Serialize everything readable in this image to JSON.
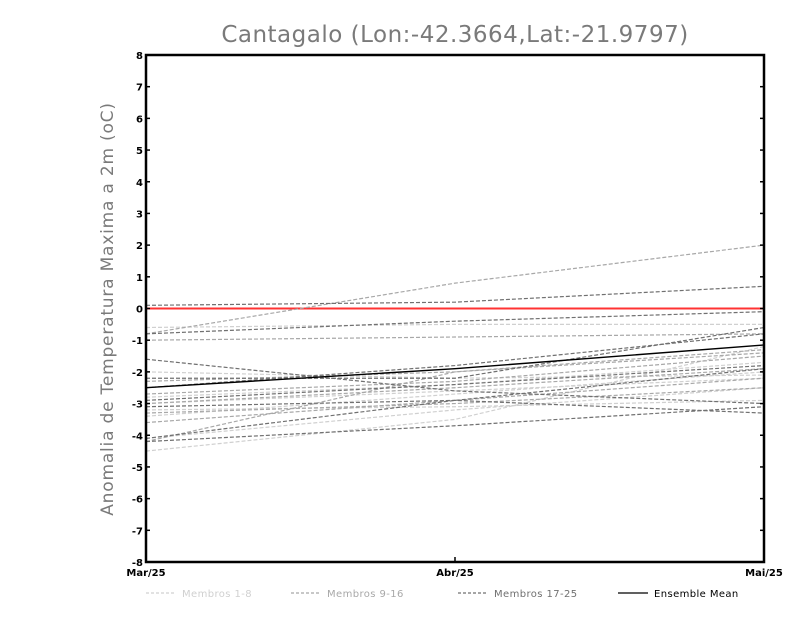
{
  "chart_data": {
    "type": "line",
    "title": "Cantagalo (Lon:-42.3664,Lat:-21.9797)",
    "xlabel": "",
    "ylabel": "Anomalia de Temperatura Maxima a 2m (oC)",
    "x_tick_labels": [
      "Mar/25",
      "Abr/25",
      "Mai/25"
    ],
    "y_ticks": [
      -8,
      -7,
      -6,
      -5,
      -4,
      -3,
      -2,
      -1,
      0,
      1,
      2,
      3,
      4,
      5,
      6,
      7,
      8
    ],
    "ylim": [
      -8,
      8
    ],
    "grid": false,
    "legend_position": "bottom",
    "reference_line": {
      "value": 0,
      "color": "#ff3333"
    },
    "legend": [
      {
        "label": "Membros 1-8",
        "color": "#d0d0d0",
        "dash": "dashed"
      },
      {
        "label": "Membros 9-16",
        "color": "#a8a8a8",
        "dash": "dashed"
      },
      {
        "label": "Membros 17-25",
        "color": "#707070",
        "dash": "dashed"
      },
      {
        "label": "Ensemble Mean",
        "color": "#000000",
        "dash": "solid"
      }
    ],
    "series": [
      {
        "group": 1,
        "values": [
          -0.6,
          -0.5,
          -0.5
        ]
      },
      {
        "group": 1,
        "values": [
          -2.0,
          -2.2,
          -2.1
        ]
      },
      {
        "group": 1,
        "values": [
          -2.8,
          -2.4,
          -1.7
        ]
      },
      {
        "group": 1,
        "values": [
          -3.0,
          -2.6,
          -2.2
        ]
      },
      {
        "group": 1,
        "values": [
          -3.4,
          -2.7,
          -2.0
        ]
      },
      {
        "group": 1,
        "values": [
          -4.1,
          -3.2,
          -2.5
        ]
      },
      {
        "group": 1,
        "values": [
          -4.5,
          -3.5,
          -1.2
        ]
      },
      {
        "group": 1,
        "values": [
          -3.2,
          -3.1,
          -2.9
        ]
      },
      {
        "group": 2,
        "values": [
          -0.8,
          0.8,
          2.0
        ]
      },
      {
        "group": 2,
        "values": [
          -1.0,
          -0.9,
          -0.8
        ]
      },
      {
        "group": 2,
        "values": [
          -2.3,
          -2.0,
          -1.3
        ]
      },
      {
        "group": 2,
        "values": [
          -2.7,
          -2.3,
          -1.5
        ]
      },
      {
        "group": 2,
        "values": [
          -3.0,
          -2.5,
          -1.9
        ]
      },
      {
        "group": 2,
        "values": [
          -3.3,
          -3.0,
          -2.5
        ]
      },
      {
        "group": 2,
        "values": [
          -3.6,
          -2.9,
          -2.2
        ]
      },
      {
        "group": 2,
        "values": [
          -4.2,
          -2.0,
          -1.4
        ]
      },
      {
        "group": 3,
        "values": [
          0.1,
          0.2,
          0.7
        ]
      },
      {
        "group": 3,
        "values": [
          -0.8,
          -0.4,
          -0.1
        ]
      },
      {
        "group": 3,
        "values": [
          -1.6,
          -2.6,
          -3.0
        ]
      },
      {
        "group": 3,
        "values": [
          -2.2,
          -2.2,
          -0.6
        ]
      },
      {
        "group": 3,
        "values": [
          -2.5,
          -1.8,
          -0.8
        ]
      },
      {
        "group": 3,
        "values": [
          -2.9,
          -2.4,
          -1.8
        ]
      },
      {
        "group": 3,
        "values": [
          -3.1,
          -2.9,
          -3.3
        ]
      },
      {
        "group": 3,
        "values": [
          -4.1,
          -2.9,
          -1.9
        ]
      },
      {
        "group": 3,
        "values": [
          -4.2,
          -3.7,
          -3.1
        ]
      },
      {
        "group": 0,
        "name": "Ensemble Mean",
        "values": [
          -2.5,
          -1.9,
          -1.15
        ]
      }
    ]
  }
}
